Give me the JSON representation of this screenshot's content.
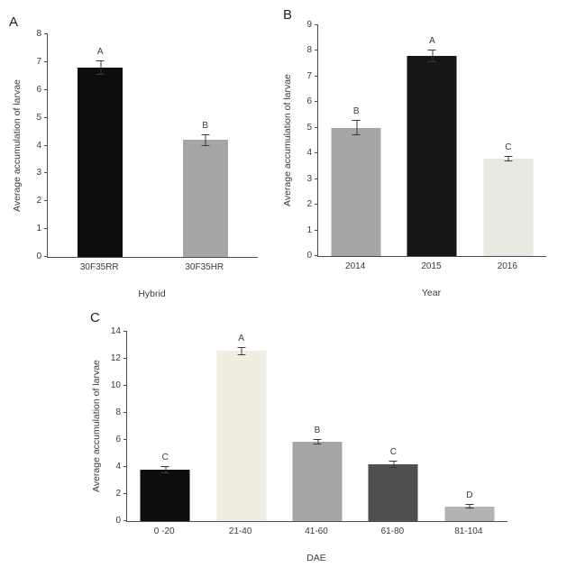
{
  "chart_data": [
    {
      "panel": "A",
      "type": "bar",
      "categories": [
        "30F35RR",
        "30F35HR"
      ],
      "values": [
        6.8,
        4.2
      ],
      "errors": [
        0.25,
        0.2
      ],
      "letters": [
        "A",
        "B"
      ],
      "colors": [
        "#0d0d0d",
        "#a6a6a6"
      ],
      "xlabel": "Hybrid",
      "ylabel": "Average accumulation of larvae",
      "ylim": [
        0,
        8
      ],
      "ystep": 1,
      "grid": "off",
      "legend": "none"
    },
    {
      "panel": "B",
      "type": "bar",
      "categories": [
        "2014",
        "2015",
        "2016"
      ],
      "values": [
        5.0,
        7.8,
        3.8
      ],
      "errors": [
        0.3,
        0.25,
        0.12
      ],
      "letters": [
        "B",
        "A",
        "C"
      ],
      "colors": [
        "#a6a6a6",
        "#161616",
        "#e9e8e1"
      ],
      "xlabel": "Year",
      "ylabel": "Average accumulation of larvae",
      "ylim": [
        0,
        9
      ],
      "ystep": 1,
      "grid": "off",
      "legend": "none"
    },
    {
      "panel": "C",
      "type": "bar",
      "categories": [
        "0 -20",
        "21-40",
        "41-60",
        "61-80",
        "81-104"
      ],
      "values": [
        3.8,
        12.6,
        5.9,
        4.2,
        1.1
      ],
      "errors": [
        0.25,
        0.3,
        0.2,
        0.25,
        0.15
      ],
      "letters": [
        "C",
        "A",
        "B",
        "C",
        "D"
      ],
      "colors": [
        "#0d0d0d",
        "#f0eee2",
        "#a6a6a6",
        "#4f4f4f",
        "#b3b3b3"
      ],
      "xlabel": "DAE",
      "ylabel": "Average accumulation of larvae",
      "ylim": [
        0,
        14
      ],
      "ystep": 2,
      "grid": "off",
      "legend": "none"
    }
  ]
}
